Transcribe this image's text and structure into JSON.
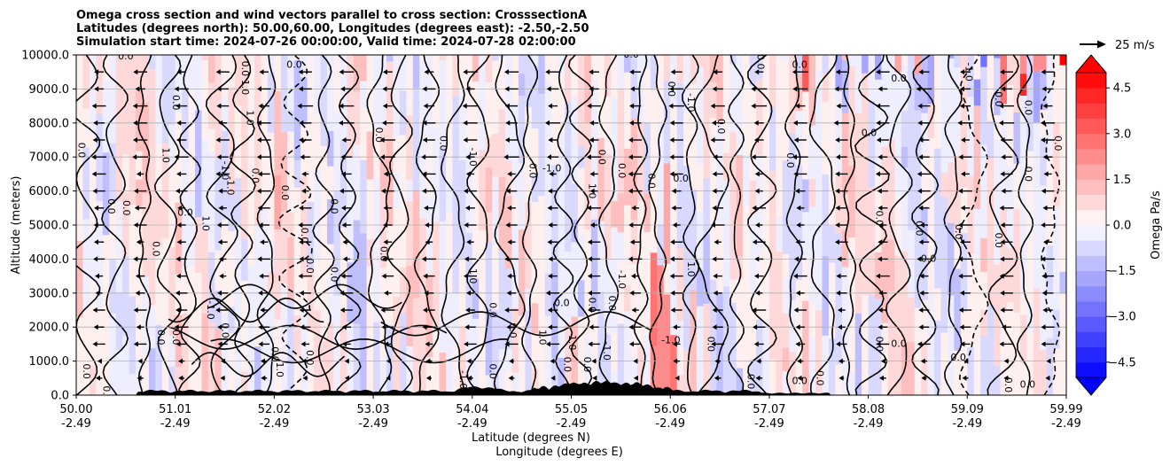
{
  "chart_data": {
    "type": "heatmap",
    "title_lines": [
      "Omega cross section and wind vectors parallel to cross section: CrosssectionA",
      "Latitudes (degrees north): 50.00,60.00, Longitudes (degrees east): -2.50,-2.50",
      "Simulation start time: 2024-07-26 00:00:00, Valid time: 2024-07-28 02:00:00"
    ],
    "ylabel": "Altitude (meters)",
    "xlabel_lines": [
      "Latitude (degrees N)",
      "Longitude (degrees E)"
    ],
    "yticks": [
      0,
      1000,
      2000,
      3000,
      4000,
      5000,
      6000,
      7000,
      8000,
      9000,
      10000
    ],
    "ytick_labels": [
      "0.0",
      "1000.0",
      "2000.0",
      "3000.0",
      "4000.0",
      "5000.0",
      "6000.0",
      "7000.0",
      "8000.0",
      "9000.0",
      "10000.0"
    ],
    "ylim": [
      0,
      10000
    ],
    "xlim": [
      50.0,
      59.99
    ],
    "xticks": [
      {
        "lat": "50.00",
        "lon": "-2.49"
      },
      {
        "lat": "51.01",
        "lon": "-2.49"
      },
      {
        "lat": "52.02",
        "lon": "-2.49"
      },
      {
        "lat": "53.03",
        "lon": "-2.49"
      },
      {
        "lat": "54.04",
        "lon": "-2.49"
      },
      {
        "lat": "55.05",
        "lon": "-2.49"
      },
      {
        "lat": "56.06",
        "lon": "-2.49"
      },
      {
        "lat": "57.07",
        "lon": "-2.49"
      },
      {
        "lat": "58.08",
        "lon": "-2.49"
      },
      {
        "lat": "59.09",
        "lon": "-2.49"
      },
      {
        "lat": "59.99",
        "lon": "-2.49"
      }
    ],
    "grid": "horizontal",
    "colorbar": {
      "label": "Omega Pa/s",
      "range": [
        -5.0,
        5.0
      ],
      "step": 0.5,
      "tick_values": [
        4.5,
        3.0,
        1.5,
        0.0,
        -1.5,
        -3.0,
        -4.5
      ],
      "tick_labels": [
        "4.5",
        "3.0",
        "1.5",
        "0.0",
        "−1.5",
        "−3.0",
        "−4.5"
      ],
      "colormap": "bwr",
      "extend": "both"
    },
    "quiver_key": {
      "label": "25 m/s",
      "value": 25
    },
    "contour_levels": [
      -1.0,
      0.0,
      1.0
    ],
    "contour_labels": [
      {
        "text": "0.0",
        "lat": 50.5,
        "alt": 9950
      },
      {
        "text": "0.0",
        "lat": 51.7,
        "alt": 9600
      },
      {
        "text": "1.0",
        "lat": 51.7,
        "alt": 9050
      },
      {
        "text": "0.0",
        "lat": 52.2,
        "alt": 9700
      },
      {
        "text": "0.0",
        "lat": 51.0,
        "alt": 8600
      },
      {
        "text": "1.0",
        "lat": 51.75,
        "alt": 8150
      },
      {
        "text": "0.0",
        "lat": 50.05,
        "alt": 7200
      },
      {
        "text": "1.0",
        "lat": 50.9,
        "alt": 7050
      },
      {
        "text": "-1.0",
        "lat": 51.5,
        "alt": 6600
      },
      {
        "text": "-1.0",
        "lat": 51.55,
        "alt": 6150
      },
      {
        "text": "0.0",
        "lat": 51.8,
        "alt": 6450
      },
      {
        "text": "0.0",
        "lat": 52.1,
        "alt": 5950
      },
      {
        "text": "0.0",
        "lat": 53.05,
        "alt": 7650
      },
      {
        "text": "0.0",
        "lat": 50.35,
        "alt": 5550
      },
      {
        "text": "0.0",
        "lat": 50.5,
        "alt": 5500
      },
      {
        "text": "0.0",
        "lat": 50.8,
        "alt": 4300
      },
      {
        "text": "0.0",
        "lat": 51.1,
        "alt": 5350
      },
      {
        "text": "1.0",
        "lat": 51.3,
        "alt": 5050
      },
      {
        "text": "0.0",
        "lat": 52.6,
        "alt": 5550
      },
      {
        "text": "0.0",
        "lat": 53.1,
        "alt": 4150
      },
      {
        "text": "0.0",
        "lat": 52.3,
        "alt": 4700
      },
      {
        "text": "0.0",
        "lat": 52.35,
        "alt": 3800
      },
      {
        "text": "0.0",
        "lat": 52.6,
        "alt": 3550
      },
      {
        "text": "0.0",
        "lat": 53.7,
        "alt": 7400
      },
      {
        "text": "-1.0",
        "lat": 54.0,
        "alt": 7000
      },
      {
        "text": "-1.0",
        "lat": 54.8,
        "alt": 6650
      },
      {
        "text": "0.0",
        "lat": 54.6,
        "alt": 6600
      },
      {
        "text": "0.0",
        "lat": 55.3,
        "alt": 7000
      },
      {
        "text": "0.0",
        "lat": 55.5,
        "alt": 6600
      },
      {
        "text": "1.0",
        "lat": 55.2,
        "alt": 6000
      },
      {
        "text": "0.0",
        "lat": 55.8,
        "alt": 6300
      },
      {
        "text": "0.0",
        "lat": 56.1,
        "alt": 6350
      },
      {
        "text": "0.0",
        "lat": 56.0,
        "alt": 9000
      },
      {
        "text": "0.0",
        "lat": 55.6,
        "alt": 10000
      },
      {
        "text": "-1.0",
        "lat": 56.2,
        "alt": 8600
      },
      {
        "text": "0.0",
        "lat": 57.3,
        "alt": 9700
      },
      {
        "text": "0.0",
        "lat": 56.9,
        "alt": 9800
      },
      {
        "text": "0.0",
        "lat": 56.5,
        "alt": 7900
      },
      {
        "text": "0.0",
        "lat": 57.2,
        "alt": 6900
      },
      {
        "text": "0.0",
        "lat": 58.0,
        "alt": 7700
      },
      {
        "text": "0.0",
        "lat": 58.3,
        "alt": 9300
      },
      {
        "text": "-1.0",
        "lat": 59.0,
        "alt": 9500
      },
      {
        "text": "0.0",
        "lat": 59.3,
        "alt": 8700
      },
      {
        "text": "0.0",
        "lat": 59.6,
        "alt": 8450
      },
      {
        "text": "0.0",
        "lat": 59.9,
        "alt": 7400
      },
      {
        "text": "0.0",
        "lat": 59.6,
        "alt": 6500
      },
      {
        "text": "0.0",
        "lat": 58.1,
        "alt": 5200
      },
      {
        "text": "0.0",
        "lat": 58.5,
        "alt": 4900
      },
      {
        "text": "0.0",
        "lat": 58.9,
        "alt": 4800
      },
      {
        "text": "0.0",
        "lat": 58.6,
        "alt": 4000
      },
      {
        "text": "0.0",
        "lat": 59.3,
        "alt": 4550
      },
      {
        "text": "1.0",
        "lat": 54.0,
        "alt": 3500
      },
      {
        "text": "-1.0",
        "lat": 55.5,
        "alt": 3400
      },
      {
        "text": "1.0",
        "lat": 56.2,
        "alt": 3700
      },
      {
        "text": "0.0",
        "lat": 55.4,
        "alt": 2700
      },
      {
        "text": "0.0",
        "lat": 55.2,
        "alt": 2650
      },
      {
        "text": "0.0",
        "lat": 54.9,
        "alt": 2700
      },
      {
        "text": "0.0",
        "lat": 54.2,
        "alt": 2500
      },
      {
        "text": "0.0",
        "lat": 54.4,
        "alt": 1900
      },
      {
        "text": "-1.0",
        "lat": 51.35,
        "alt": 2500
      },
      {
        "text": "0.0",
        "lat": 51.5,
        "alt": 1900
      },
      {
        "text": "0.0",
        "lat": 50.85,
        "alt": 1700
      },
      {
        "text": "0.0",
        "lat": 51.0,
        "alt": 1700
      },
      {
        "text": "0.0",
        "lat": 52.0,
        "alt": 1200
      },
      {
        "text": "-1.0",
        "lat": 52.05,
        "alt": 800
      },
      {
        "text": "0.0",
        "lat": 52.35,
        "alt": 1100
      },
      {
        "text": "0.0",
        "lat": 50.1,
        "alt": 700
      },
      {
        "text": "0.0",
        "lat": 50.3,
        "alt": 50
      },
      {
        "text": "-1.0",
        "lat": 55.0,
        "alt": 1600
      },
      {
        "text": "-1.0",
        "lat": 55.35,
        "alt": 1300
      },
      {
        "text": "1.0",
        "lat": 54.7,
        "alt": 1700
      },
      {
        "text": "0.0",
        "lat": 54.95,
        "alt": 900
      },
      {
        "text": "0.0",
        "lat": 55.15,
        "alt": 900
      },
      {
        "text": "-1.0",
        "lat": 56.0,
        "alt": 1600
      },
      {
        "text": "0.0",
        "lat": 56.4,
        "alt": 1500
      },
      {
        "text": "-1.0",
        "lat": 53.9,
        "alt": 450
      },
      {
        "text": "0.0",
        "lat": 54.2,
        "alt": 700
      },
      {
        "text": "0.0",
        "lat": 56.8,
        "alt": 400
      },
      {
        "text": "0.0",
        "lat": 57.3,
        "alt": 400
      },
      {
        "text": "0.0",
        "lat": 57.5,
        "alt": 500
      },
      {
        "text": "0.0",
        "lat": 58.1,
        "alt": 1500
      },
      {
        "text": "0.0",
        "lat": 58.3,
        "alt": 1500
      },
      {
        "text": "0.0",
        "lat": 58.9,
        "alt": 1100
      },
      {
        "text": "0.0",
        "lat": 59.4,
        "alt": 300
      },
      {
        "text": "0.0",
        "lat": 59.6,
        "alt": 300
      }
    ],
    "wind": "Predominantly easterly-to-westerly flow (arrows pointing toward lower latitude) throughout the column, with short vectors near the surface."
  }
}
